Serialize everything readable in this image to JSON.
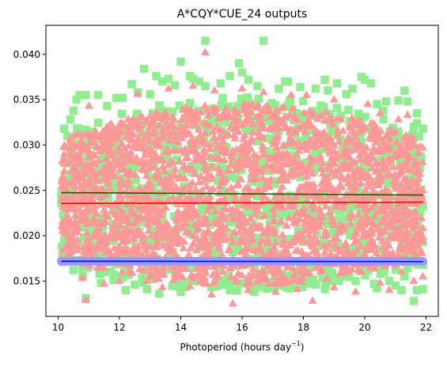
{
  "chart_data": {
    "type": "scatter",
    "title": "A*CQY*CUE_24 outputs",
    "xlabel": {
      "prefix": "Photoperiod (hours day",
      "superscript": "−1",
      "suffix": ")"
    },
    "ylabel": "",
    "xlim": [
      9.6,
      22.4
    ],
    "ylim": [
      0.0111,
      0.0432
    ],
    "xticks": [
      10,
      12,
      14,
      16,
      18,
      20,
      22
    ],
    "xtick_labels": [
      "10",
      "12",
      "14",
      "16",
      "18",
      "20",
      "22"
    ],
    "yticks": [
      0.015,
      0.02,
      0.025,
      0.03,
      0.035,
      0.04
    ],
    "ytick_labels": [
      "0.015",
      "0.020",
      "0.025",
      "0.030",
      "0.035",
      "0.040"
    ],
    "grid": false,
    "legend": "none",
    "colors": {
      "green_marker": "#90ee90",
      "red_marker": "#ff9999",
      "blue_marker": "#9999ff",
      "green_line": "#1a5c00",
      "red_line": "#ff0000",
      "blue_line": "#0000ff"
    },
    "series": [
      {
        "marker": "square",
        "color": "#90ee90",
        "points": [
          [
            14.8,
            0.0415
          ],
          [
            16.7,
            0.0415
          ],
          [
            14.0,
            0.0392
          ],
          [
            15.9,
            0.039
          ],
          [
            12.8,
            0.0384
          ],
          [
            16.0,
            0.038
          ],
          [
            14.3,
            0.0376
          ],
          [
            13.2,
            0.0376
          ],
          [
            19.9,
            0.0375
          ],
          [
            15.6,
            0.0376
          ],
          [
            14.4,
            0.0373
          ],
          [
            17.4,
            0.037
          ],
          [
            18.7,
            0.0372
          ],
          [
            20.0,
            0.0372
          ],
          [
            13.6,
            0.0373
          ],
          [
            17.5,
            0.037
          ],
          [
            13.4,
            0.037
          ],
          [
            14.6,
            0.037
          ],
          [
            12.4,
            0.0367
          ],
          [
            19.1,
            0.0368
          ],
          [
            16.5,
            0.0365
          ],
          [
            17.2,
            0.0362
          ],
          [
            20.2,
            0.0368
          ],
          [
            14.8,
            0.0365
          ],
          [
            11.3,
            0.0355
          ],
          [
            10.7,
            0.0355
          ],
          [
            10.9,
            0.0355
          ],
          [
            10.6,
            0.035
          ],
          [
            11.9,
            0.0352
          ],
          [
            18.8,
            0.036
          ],
          [
            21.3,
            0.036
          ],
          [
            21.4,
            0.0348
          ],
          [
            21.1,
            0.0349
          ],
          [
            21.7,
            0.0335
          ],
          [
            20.4,
            0.0345
          ],
          [
            20.6,
            0.0338
          ],
          [
            10.5,
            0.0338
          ],
          [
            10.4,
            0.0328
          ],
          [
            21.7,
            0.0324
          ],
          [
            10.2,
            0.0318
          ],
          [
            21.9,
            0.0318
          ],
          [
            10.3,
            0.031
          ],
          [
            21.6,
            0.032
          ],
          [
            10.8,
            0.0312
          ],
          [
            21.1,
            0.0306
          ],
          [
            10.6,
            0.03
          ],
          [
            21.8,
            0.0288
          ],
          [
            10.3,
            0.0285
          ],
          [
            10.2,
            0.028
          ],
          [
            21.3,
            0.0276
          ],
          [
            21.8,
            0.0275
          ],
          [
            21.6,
            0.0268
          ],
          [
            21.7,
            0.0258
          ],
          [
            10.5,
            0.0272
          ],
          [
            10.4,
            0.026
          ],
          [
            21.9,
            0.0232
          ],
          [
            10.1,
            0.0245
          ],
          [
            10.3,
            0.0238
          ],
          [
            21.8,
            0.02
          ],
          [
            10.2,
            0.0195
          ],
          [
            10.3,
            0.018
          ],
          [
            10.4,
            0.0172
          ],
          [
            10.5,
            0.0162
          ],
          [
            10.8,
            0.0155
          ],
          [
            10.9,
            0.0131
          ],
          [
            11.4,
            0.0148
          ],
          [
            11.8,
            0.0151
          ],
          [
            12.5,
            0.0146
          ],
          [
            13.1,
            0.0152
          ],
          [
            21.6,
            0.0128
          ],
          [
            21.0,
            0.0145
          ],
          [
            21.2,
            0.014
          ],
          [
            21.7,
            0.014
          ],
          [
            21.9,
            0.0141
          ],
          [
            20.4,
            0.0142
          ],
          [
            20.3,
            0.0147
          ],
          [
            19.7,
            0.015
          ],
          [
            18.7,
            0.0141
          ],
          [
            18.4,
            0.0146
          ],
          [
            18.1,
            0.015
          ],
          [
            17.5,
            0.0156
          ],
          [
            17.2,
            0.0145
          ],
          [
            16.6,
            0.0148
          ],
          [
            16.4,
            0.0138
          ],
          [
            15.6,
            0.014
          ],
          [
            15.0,
            0.0143
          ],
          [
            14.5,
            0.015
          ],
          [
            14.0,
            0.0138
          ],
          [
            13.3,
            0.0136
          ],
          [
            12.9,
            0.0141
          ],
          [
            12.2,
            0.014
          ],
          [
            11.5,
            0.016
          ],
          [
            21.4,
            0.0164
          ],
          [
            20.8,
            0.015
          ],
          [
            21.3,
            0.0155
          ],
          [
            21.9,
            0.0168
          ],
          [
            11.6,
            0.0343
          ],
          [
            12.1,
            0.0352
          ],
          [
            12.6,
            0.0358
          ],
          [
            13.0,
            0.0356
          ],
          [
            13.8,
            0.0366
          ],
          [
            15.3,
            0.0368
          ],
          [
            16.2,
            0.0372
          ],
          [
            17.9,
            0.0364
          ],
          [
            18.4,
            0.0362
          ],
          [
            19.4,
            0.0356
          ],
          [
            20.7,
            0.0348
          ],
          [
            19.6,
            0.0362
          ]
        ]
      },
      {
        "marker": "triangle",
        "color": "#ff9999",
        "points": [
          [
            14.8,
            0.0402
          ],
          [
            18.1,
            0.0355
          ],
          [
            16.0,
            0.0362
          ],
          [
            14.4,
            0.0365
          ],
          [
            11.0,
            0.0343
          ],
          [
            10.2,
            0.0281
          ],
          [
            10.5,
            0.03
          ],
          [
            21.1,
            0.0328
          ],
          [
            21.4,
            0.0333
          ],
          [
            20.1,
            0.0345
          ],
          [
            21.8,
            0.0298
          ],
          [
            21.7,
            0.028
          ],
          [
            10.3,
            0.0229
          ],
          [
            10.4,
            0.0215
          ],
          [
            21.9,
            0.025
          ],
          [
            21.9,
            0.0208
          ],
          [
            21.9,
            0.0155
          ],
          [
            21.6,
            0.015
          ],
          [
            10.8,
            0.0153
          ],
          [
            10.9,
            0.0129
          ],
          [
            10.9,
            0.0176
          ],
          [
            10.9,
            0.0185
          ],
          [
            10.1,
            0.0175
          ],
          [
            11.5,
            0.0147
          ],
          [
            12.0,
            0.015
          ],
          [
            12.9,
            0.015
          ],
          [
            13.4,
            0.0143
          ],
          [
            14.3,
            0.0144
          ],
          [
            15.0,
            0.0135
          ],
          [
            15.7,
            0.0125
          ],
          [
            16.2,
            0.014
          ],
          [
            17.1,
            0.0138
          ],
          [
            17.8,
            0.0141
          ],
          [
            18.3,
            0.0128
          ],
          [
            19.0,
            0.0143
          ],
          [
            19.7,
            0.0138
          ],
          [
            20.5,
            0.0148
          ],
          [
            20.8,
            0.014
          ],
          [
            21.2,
            0.016
          ],
          [
            12.6,
            0.0356
          ],
          [
            13.6,
            0.0362
          ],
          [
            15.1,
            0.036
          ],
          [
            16.7,
            0.0358
          ],
          [
            17.6,
            0.0355
          ],
          [
            19.0,
            0.035
          ],
          [
            20.5,
            0.0335
          ]
        ]
      }
    ],
    "point_cloud": {
      "marker": "triangle",
      "color": "#ff9999",
      "x_range": [
        10.1,
        21.9
      ],
      "lower_edge_at_center": 0.0145,
      "upper_edge_at_center": 0.0345,
      "lower_edge_at_ends": 0.0175,
      "upper_edge_at_ends": 0.0305
    },
    "lines": [
      {
        "name": "",
        "color": "#1a5c00",
        "x": [
          10.1,
          21.9
        ],
        "y": [
          0.02475,
          0.02448
        ]
      },
      {
        "name": "",
        "color": "#ff0000",
        "x": [
          10.1,
          21.9
        ],
        "y": [
          0.02355,
          0.0237
        ]
      },
      {
        "name": "",
        "color": "#0000ff",
        "x": [
          10.1,
          21.9
        ],
        "y": [
          0.01718,
          0.01715
        ]
      }
    ],
    "blue_markers": {
      "marker": "circle",
      "color": "#9999ff",
      "x_range": [
        10.1,
        21.9
      ],
      "y": 0.01717
    }
  }
}
